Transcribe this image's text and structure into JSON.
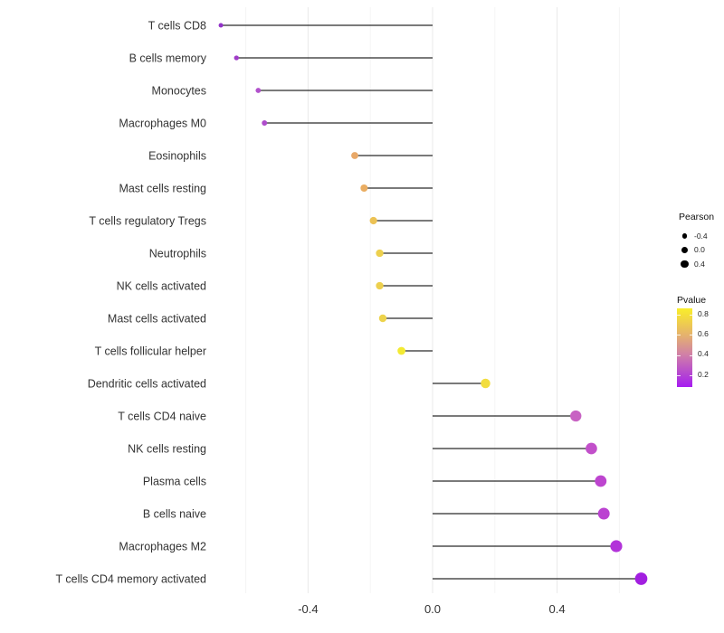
{
  "chart_data": {
    "type": "scatter",
    "subtype": "lollipop",
    "title": "",
    "xlabel": "",
    "ylabel": "",
    "x_axis": {
      "tick_labels": [
        "-0.4",
        "0.0",
        "0.4"
      ],
      "tick_values": [
        -0.4,
        0.0,
        0.4
      ],
      "minor_gridlines": [
        -0.6,
        -0.2,
        0.2,
        0.6
      ],
      "range": [
        -0.703,
        0.721
      ],
      "grid": "on"
    },
    "rows": [
      {
        "label": "T cells CD8",
        "pearson": -0.68,
        "pvalue_est": 0.12,
        "color": "#9232c8"
      },
      {
        "label": "B cells memory",
        "pearson": -0.63,
        "pvalue_est": 0.16,
        "color": "#a03cc8"
      },
      {
        "label": "Monocytes",
        "pearson": -0.56,
        "pvalue_est": 0.22,
        "color": "#b151cc"
      },
      {
        "label": "Macrophages M0",
        "pearson": -0.54,
        "pvalue_est": 0.21,
        "color": "#ae4ccb"
      },
      {
        "label": "Eosinophils",
        "pearson": -0.25,
        "pvalue_est": 0.6,
        "color": "#e8a868"
      },
      {
        "label": "Mast cells resting",
        "pearson": -0.22,
        "pvalue_est": 0.62,
        "color": "#eaad62"
      },
      {
        "label": "T cells regulatory Tregs",
        "pearson": -0.19,
        "pvalue_est": 0.68,
        "color": "#ecc254"
      },
      {
        "label": "Neutrophils",
        "pearson": -0.17,
        "pvalue_est": 0.72,
        "color": "#edd04e"
      },
      {
        "label": "NK cells activated",
        "pearson": -0.17,
        "pvalue_est": 0.72,
        "color": "#edd04e"
      },
      {
        "label": "Mast cells activated",
        "pearson": -0.16,
        "pvalue_est": 0.73,
        "color": "#edd34c"
      },
      {
        "label": "T cells follicular helper",
        "pearson": -0.1,
        "pvalue_est": 0.82,
        "color": "#f3ea33"
      },
      {
        "label": "Dendritic cells activated",
        "pearson": 0.17,
        "pvalue_est": 0.78,
        "color": "#f2dd3e"
      },
      {
        "label": "T cells CD4 naive",
        "pearson": 0.46,
        "pvalue_est": 0.33,
        "color": "#c863c3"
      },
      {
        "label": "NK cells resting",
        "pearson": 0.51,
        "pvalue_est": 0.28,
        "color": "#c250ca"
      },
      {
        "label": "Plasma cells",
        "pearson": 0.54,
        "pvalue_est": 0.26,
        "color": "#bd45cf"
      },
      {
        "label": "B cells naive",
        "pearson": 0.55,
        "pvalue_est": 0.25,
        "color": "#bb42d1"
      },
      {
        "label": "Macrophages M2",
        "pearson": 0.59,
        "pvalue_est": 0.21,
        "color": "#b233d9"
      },
      {
        "label": "T cells CD4 memory activated",
        "pearson": 0.67,
        "pvalue_est": 0.14,
        "color": "#a21fe0"
      }
    ],
    "legend_size": {
      "title": "Pearson",
      "entries": [
        {
          "label": "-0.4",
          "value": -0.4
        },
        {
          "label": "0.0",
          "value": 0.0
        },
        {
          "label": "0.4",
          "value": 0.4
        }
      ]
    },
    "legend_color": {
      "title": "Pvalue",
      "tick_labels": [
        "0.8",
        "0.6",
        "0.4",
        "0.2"
      ],
      "range": [
        0.08,
        0.86
      ],
      "gradient_stops": [
        {
          "pos": "0%",
          "color": "#a71bf2"
        },
        {
          "pos": "15%",
          "color": "#b342d4"
        },
        {
          "pos": "41%",
          "color": "#d07fa8"
        },
        {
          "pos": "66%",
          "color": "#e5b26e"
        },
        {
          "pos": "92%",
          "color": "#f5e038"
        },
        {
          "pos": "100%",
          "color": "#f9ee2c"
        }
      ]
    },
    "layout_hints": {
      "legend_position": "right",
      "stem_color": "#2a2a2a",
      "major_grid_color": "#e9e9e9",
      "minor_grid_color": "#f4f4f4",
      "axis_text_color": "#333333",
      "background": "#ffffff"
    }
  }
}
